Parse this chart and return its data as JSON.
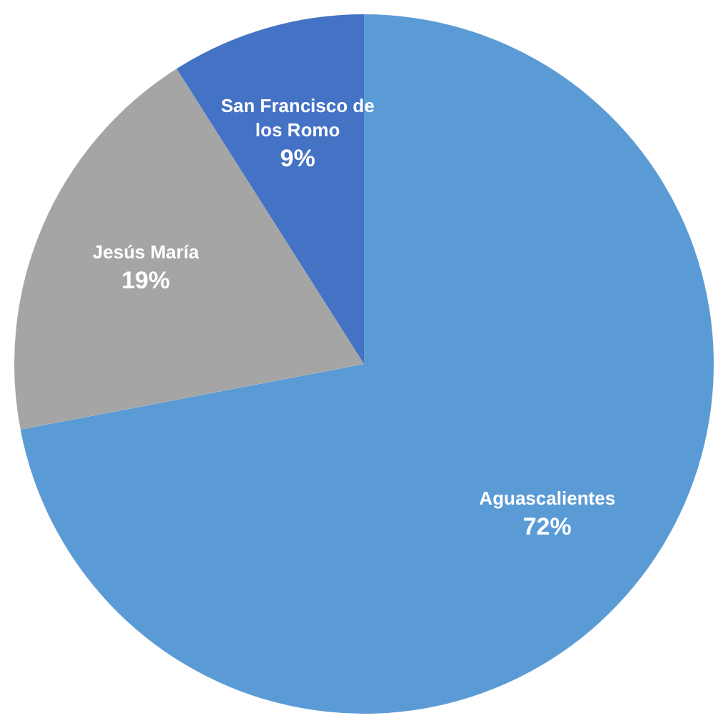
{
  "chart_data": {
    "type": "pie",
    "categories": [
      "Aguascalientes",
      "Jesús María",
      "San Francisco de los Romo"
    ],
    "values": [
      72,
      19,
      9
    ],
    "colors": [
      "#5b9bd5",
      "#a5a5a5",
      "#4472c4"
    ],
    "value_labels": [
      "72%",
      "19%",
      "9%"
    ],
    "legend": false
  }
}
